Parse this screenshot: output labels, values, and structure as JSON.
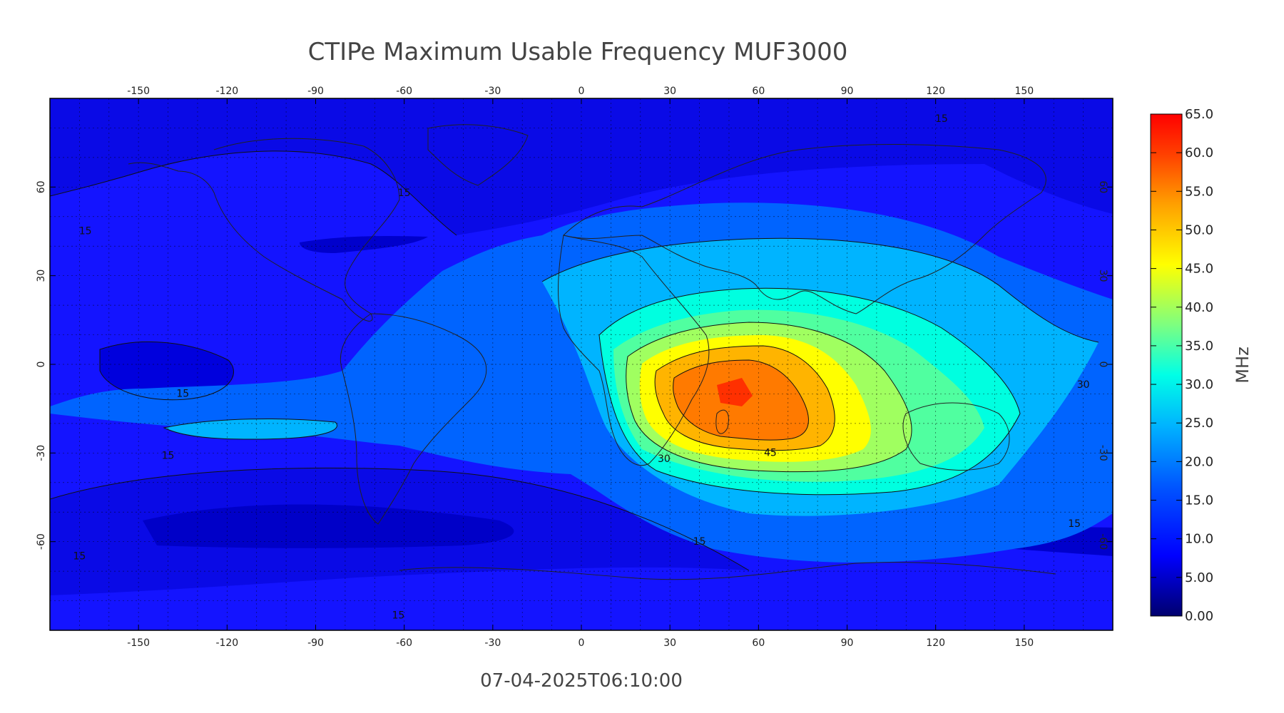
{
  "title": "CTIPe Maximum Usable Frequency MUF3000",
  "timestamp": "07-04-2025T06:10:00",
  "map": {
    "lon_range": [
      -180,
      180
    ],
    "lat_range": [
      -90,
      90
    ],
    "lon_ticks": [
      "-150",
      "-120",
      "-90",
      "-60",
      "-30",
      "0",
      "30",
      "60",
      "90",
      "120",
      "150"
    ],
    "lat_ticks": [
      "60",
      "30",
      "0",
      "-30",
      "-60"
    ],
    "grid": true,
    "grid_style": "dotted"
  },
  "contour_labels": [
    {
      "text": "15",
      "lon": 122,
      "lat": 82
    },
    {
      "text": "15",
      "lon": -60,
      "lat": 57
    },
    {
      "text": "15",
      "lon": -168,
      "lat": 44
    },
    {
      "text": "15",
      "lon": -135,
      "lat": -11
    },
    {
      "text": "15",
      "lon": -140,
      "lat": -32
    },
    {
      "text": "15",
      "lon": 40,
      "lat": -61
    },
    {
      "text": "15",
      "lon": 167,
      "lat": -55
    },
    {
      "text": "15",
      "lon": -170,
      "lat": -66
    },
    {
      "text": "15",
      "lon": -62,
      "lat": -86
    },
    {
      "text": "30",
      "lon": 170,
      "lat": -8
    },
    {
      "text": "30",
      "lon": 28,
      "lat": -33
    },
    {
      "text": "45",
      "lon": 64,
      "lat": -31
    }
  ],
  "colorbar": {
    "unit": "MHz",
    "min": 0,
    "max": 65,
    "tick_labels": [
      "65.0",
      "60.0",
      "55.0",
      "50.0",
      "45.0",
      "40.0",
      "35.0",
      "30.0",
      "25.0",
      "20.0",
      "15.0",
      "10.0",
      "5.00",
      "0.00"
    ],
    "colors": [
      "#00008b",
      "#0000ff",
      "#0064ff",
      "#00c8ff",
      "#00ffe0",
      "#80ff80",
      "#ffff00",
      "#ffb000",
      "#ff6000",
      "#ff0000"
    ]
  }
}
